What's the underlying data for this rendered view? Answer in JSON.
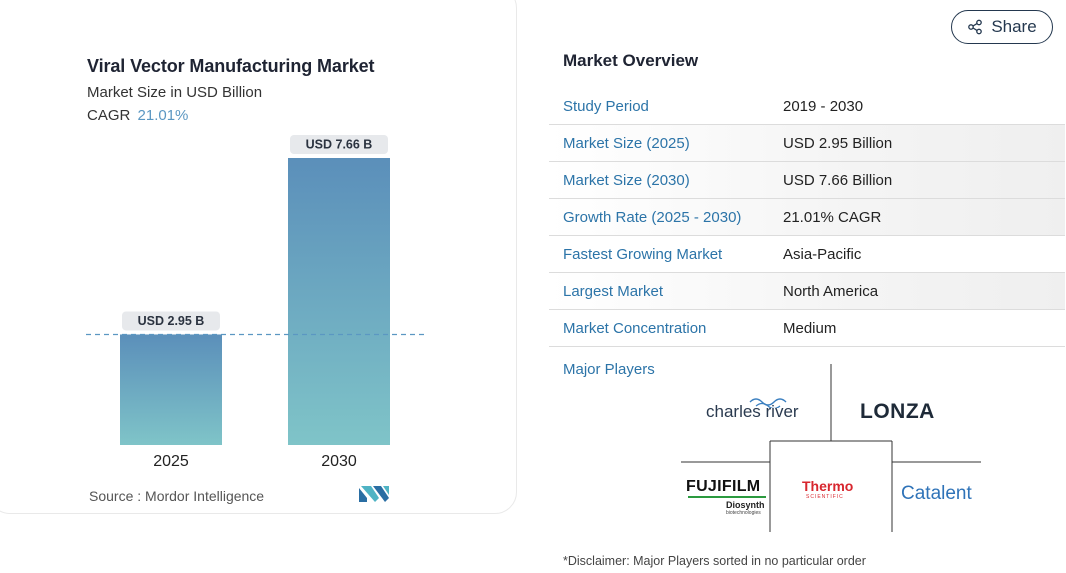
{
  "chart": {
    "title": "Viral Vector Manufacturing Market",
    "subtitle": "Market Size in USD Billion",
    "cagr_label": "CAGR",
    "cagr_value": "21.01%",
    "source": "Source :  Mordor Intelligence"
  },
  "chart_data": {
    "type": "bar",
    "categories": [
      "2025",
      "2030"
    ],
    "values": [
      2.95,
      7.66
    ],
    "data_labels": [
      "USD 2.95 B",
      "USD 7.66 B"
    ],
    "title": "Viral Vector Manufacturing Market",
    "subtitle": "Market Size in USD Billion",
    "xlabel": "",
    "ylabel": "",
    "ylim": [
      0,
      7.66
    ],
    "grid": false,
    "reference_line": 2.95,
    "colors": {
      "bar_top": "#5b8fba",
      "bar_bottom": "#7fc4c8",
      "reference_line": "#5b97c2",
      "label_bg": "#e7e9ec"
    }
  },
  "share": {
    "label": "Share",
    "icon": "share-icon"
  },
  "overview": {
    "title": "Market Overview",
    "rows": [
      {
        "label": "Study Period",
        "value": "2019 - 2030"
      },
      {
        "label": "Market Size (2025)",
        "value": "USD 2.95 Billion"
      },
      {
        "label": "Market Size (2030)",
        "value": "USD 7.66 Billion"
      },
      {
        "label": "Growth Rate (2025 - 2030)",
        "value": "21.01% CAGR"
      },
      {
        "label": "Fastest Growing Market",
        "value": "Asia-Pacific"
      },
      {
        "label": "Largest Market",
        "value": "North America"
      },
      {
        "label": "Market Concentration",
        "value": "Medium"
      }
    ]
  },
  "players": {
    "title": "Major Players",
    "logos": {
      "charles_river": "charles river",
      "lonza": "LONZA",
      "fujifilm": "FUJIFILM",
      "diosynth": "Diosynth",
      "diosynth_sub": "biotechnologies",
      "thermo": "Thermo",
      "thermo_sub": "SCIENTIFIC",
      "catalent": "Catalent"
    }
  },
  "disclaimer": "*Disclaimer: Major Players sorted in no particular order",
  "colors": {
    "accent": "#2c74a8",
    "heading": "#1f2433",
    "share_border": "#24384f"
  }
}
